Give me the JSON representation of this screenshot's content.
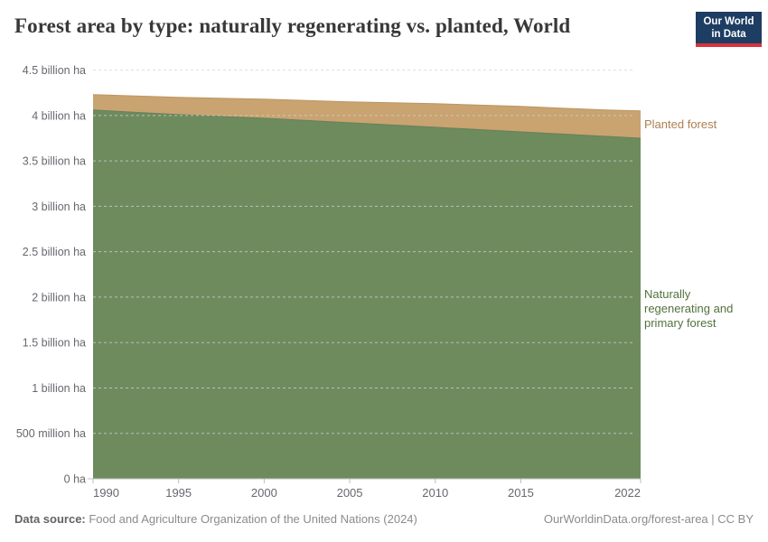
{
  "header": {
    "title": "Forest area by type: naturally regenerating vs. planted, World",
    "logo": {
      "line1": "Our World",
      "line2": "in Data"
    }
  },
  "chart_data": {
    "type": "area",
    "stacked": true,
    "title": "Forest area by type: naturally regenerating vs. planted, World",
    "x": [
      1990,
      1995,
      2000,
      2005,
      2010,
      2015,
      2020,
      2022
    ],
    "series": [
      {
        "name": "Naturally regenerating and primary forest",
        "unit": "billion ha",
        "values": [
          4.06,
          4.01,
          3.97,
          3.92,
          3.87,
          3.82,
          3.77,
          3.75
        ],
        "color": "#6e8b5e",
        "label_color": "#52713d"
      },
      {
        "name": "Planted forest",
        "unit": "billion ha",
        "values": [
          0.17,
          0.19,
          0.21,
          0.23,
          0.26,
          0.28,
          0.29,
          0.3
        ],
        "color": "#c9a370",
        "label_color": "#ae7f51"
      }
    ],
    "x_ticks": [
      1990,
      1995,
      2000,
      2005,
      2010,
      2015,
      2022
    ],
    "y_ticks": [
      {
        "v": 0,
        "label": "0 ha"
      },
      {
        "v": 0.5,
        "label": "500 million ha"
      },
      {
        "v": 1,
        "label": "1 billion ha"
      },
      {
        "v": 1.5,
        "label": "1.5 billion ha"
      },
      {
        "v": 2,
        "label": "2 billion ha"
      },
      {
        "v": 2.5,
        "label": "2.5 billion ha"
      },
      {
        "v": 3,
        "label": "3 billion ha"
      },
      {
        "v": 3.5,
        "label": "3.5 billion ha"
      },
      {
        "v": 4,
        "label": "4 billion ha"
      },
      {
        "v": 4.5,
        "label": "4.5 billion ha"
      }
    ],
    "xlim": [
      1990,
      2022
    ],
    "ylim": [
      0,
      4.5
    ],
    "grid": "dashed horizontal",
    "legend_position": "right of plot, aligned to series bands"
  },
  "colors": {
    "axis_text": "#67676f",
    "gridline": "#d2d2d2",
    "baseline": "#bcbcbc",
    "title_text": "#383838",
    "logo_bg": "#1d3d63",
    "logo_red": "#d7333d"
  },
  "footer": {
    "source_label": "Data source:",
    "source_value": " Food and Agriculture Organization of the United Nations (2024)",
    "credit": "OurWorldinData.org/forest-area | CC BY"
  }
}
